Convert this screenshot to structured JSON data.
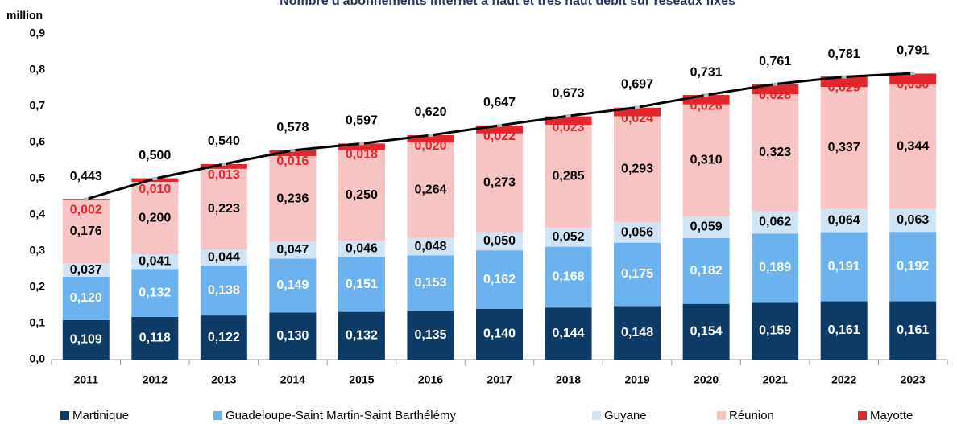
{
  "chart_data": {
    "type": "bar",
    "stacked": true,
    "title": "Nombre d'abonnements  Internet à haut et très haut débit sur réseaux fixes",
    "y_label": "million",
    "categories": [
      "2011",
      "2012",
      "2013",
      "2014",
      "2015",
      "2016",
      "2017",
      "2018",
      "2019",
      "2020",
      "2021",
      "2022",
      "2023"
    ],
    "ylim": [
      0,
      0.9
    ],
    "yticks": [
      {
        "value": 0,
        "label": "0,0"
      },
      {
        "value": 0.1,
        "label": "0,1"
      },
      {
        "value": 0.2,
        "label": "0,2"
      },
      {
        "value": 0.3,
        "label": "0,3"
      },
      {
        "value": 0.4,
        "label": "0,4"
      },
      {
        "value": 0.5,
        "label": "0,5"
      },
      {
        "value": 0.6,
        "label": "0,6"
      },
      {
        "value": 0.7,
        "label": "0,7"
      },
      {
        "value": 0.8,
        "label": "0,8"
      },
      {
        "value": 0.9,
        "label": "0,9"
      }
    ],
    "grid": false,
    "legend": "bottom",
    "series": [
      {
        "name": "Martinique",
        "color": "#0d3b66",
        "label_color": "#ffffff",
        "values": [
          0.109,
          0.118,
          0.122,
          0.13,
          0.132,
          0.135,
          0.14,
          0.144,
          0.148,
          0.154,
          0.159,
          0.161,
          0.161
        ],
        "value_labels": [
          "0,109",
          "0,118",
          "0,122",
          "0,130",
          "0,132",
          "0,135",
          "0,140",
          "0,144",
          "0,148",
          "0,154",
          "0,159",
          "0,161",
          "0,161"
        ]
      },
      {
        "name": "Guadeloupe-Saint Martin-Saint Barthélémy",
        "color": "#6cb2ef",
        "label_color": "#ffffff",
        "values": [
          0.12,
          0.132,
          0.138,
          0.149,
          0.151,
          0.153,
          0.162,
          0.168,
          0.175,
          0.182,
          0.189,
          0.191,
          0.192
        ],
        "value_labels": [
          "0,120",
          "0,132",
          "0,138",
          "0,149",
          "0,151",
          "0,153",
          "0,162",
          "0,168",
          "0,175",
          "0,182",
          "0,189",
          "0,191",
          "0,192"
        ]
      },
      {
        "name": "Guyane",
        "color": "#cfe5f6",
        "label_color": "#000000",
        "values": [
          0.037,
          0.041,
          0.044,
          0.047,
          0.046,
          0.048,
          0.05,
          0.052,
          0.056,
          0.059,
          0.062,
          0.064,
          0.063
        ],
        "value_labels": [
          "0,037",
          "0,041",
          "0,044",
          "0,047",
          "0,046",
          "0,048",
          "0,050",
          "0,052",
          "0,056",
          "0,059",
          "0,062",
          "0,064",
          "0,063"
        ]
      },
      {
        "name": "Réunion",
        "color": "#f7c4c4",
        "label_color": "#000000",
        "values": [
          0.176,
          0.2,
          0.223,
          0.236,
          0.25,
          0.264,
          0.273,
          0.285,
          0.293,
          0.31,
          0.323,
          0.337,
          0.344
        ],
        "value_labels": [
          "0,176",
          "0,200",
          "0,223",
          "0,236",
          "0,250",
          "0,264",
          "0,273",
          "0,285",
          "0,293",
          "0,310",
          "0,323",
          "0,337",
          "0,344"
        ]
      },
      {
        "name": "Mayotte",
        "color": "#e2262b",
        "label_color": "#e2262b",
        "values": [
          0.002,
          0.01,
          0.013,
          0.016,
          0.018,
          0.02,
          0.022,
          0.023,
          0.024,
          0.026,
          0.028,
          0.029,
          0.03
        ],
        "value_labels": [
          "0,002",
          "0,010",
          "0,013",
          "0,016",
          "0,018",
          "0,020",
          "0,022",
          "0,023",
          "0,024",
          "0,026",
          "0,028",
          "0,029",
          "0,030"
        ]
      }
    ],
    "totals": {
      "color": "#000000",
      "values": [
        0.443,
        0.5,
        0.54,
        0.578,
        0.597,
        0.62,
        0.647,
        0.673,
        0.697,
        0.731,
        0.761,
        0.781,
        0.791
      ],
      "value_labels": [
        "0,443",
        "0,500",
        "0,540",
        "0,578",
        "0,597",
        "0,620",
        "0,647",
        "0,673",
        "0,697",
        "0,731",
        "0,761",
        "0,781",
        "0,791"
      ]
    }
  }
}
